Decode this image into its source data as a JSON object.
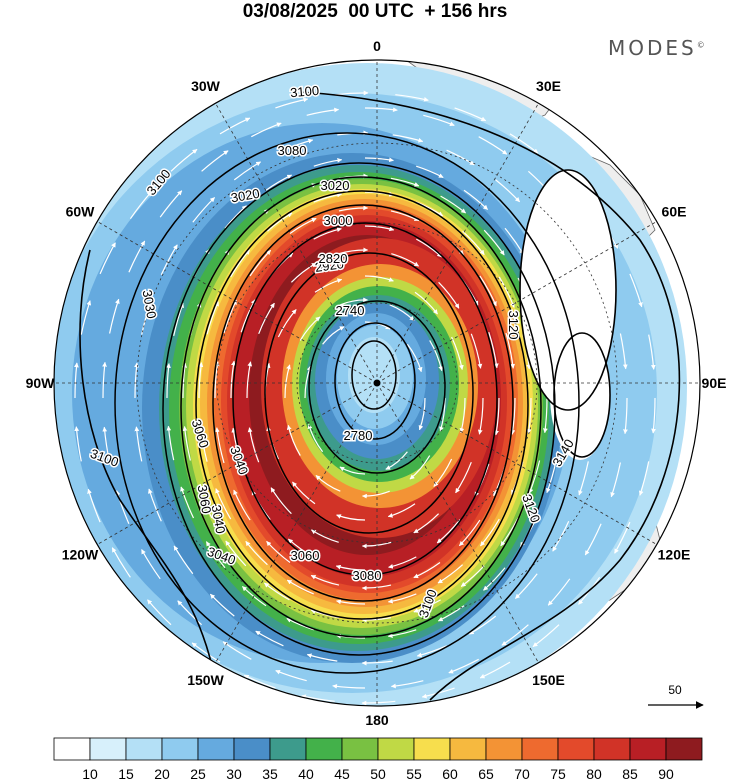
{
  "title": "03/08/2025  00 UTC  + 156 hrs",
  "logo": "MODES",
  "logo_mark": "©",
  "colors": {
    "background": "#ffffff",
    "land": "#eeeeee",
    "coast": "#666666",
    "contour": "#000000",
    "vector": "#ffffff",
    "grid": "#333333"
  },
  "map": {
    "projection": "polar stereographic, south pole",
    "longitude_labels": [
      "0",
      "30E",
      "60E",
      "90E",
      "120E",
      "150E",
      "180",
      "150W",
      "120W",
      "90W",
      "60W",
      "30W"
    ],
    "contour_labels": [
      "3100",
      "3080",
      "3020",
      "3020",
      "3000",
      "2920",
      "2820",
      "2740",
      "2780",
      "3060",
      "3040",
      "3060",
      "3040",
      "3100",
      "3120",
      "3140",
      "3120",
      "3100",
      "3080",
      "3030",
      "3100",
      "3060",
      "3040"
    ],
    "reference_vector_label": "50",
    "shading_levels": [
      {
        "value": 0,
        "color": "#ffffff"
      },
      {
        "value": 10,
        "color": "#d7f0fb"
      },
      {
        "value": 15,
        "color": "#b4e0f6"
      },
      {
        "value": 20,
        "color": "#8fcbef"
      },
      {
        "value": 25,
        "color": "#65aadf"
      },
      {
        "value": 30,
        "color": "#4a8ec8"
      },
      {
        "value": 35,
        "color": "#3d9b8c"
      },
      {
        "value": 40,
        "color": "#43b14a"
      },
      {
        "value": 45,
        "color": "#79c142"
      },
      {
        "value": 50,
        "color": "#c0d945"
      },
      {
        "value": 55,
        "color": "#f7de4d"
      },
      {
        "value": 60,
        "color": "#f6b93f"
      },
      {
        "value": 65,
        "color": "#f39335"
      },
      {
        "value": 70,
        "color": "#ee6a2f"
      },
      {
        "value": 75,
        "color": "#e34a2b"
      },
      {
        "value": 80,
        "color": "#d13327"
      },
      {
        "value": 85,
        "color": "#b81f25"
      },
      {
        "value": 90,
        "color": "#8e1b1f"
      }
    ],
    "colorbar_labels": [
      "10",
      "15",
      "20",
      "25",
      "30",
      "35",
      "40",
      "45",
      "50",
      "55",
      "60",
      "65",
      "70",
      "75",
      "80",
      "85",
      "90"
    ]
  }
}
